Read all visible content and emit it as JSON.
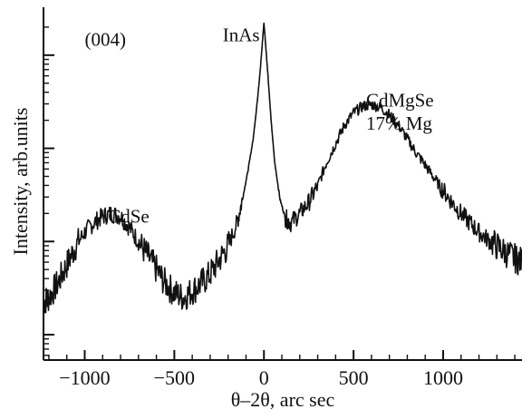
{
  "chart_data": {
    "type": "line",
    "xlabel": "θ–2θ, arc sec",
    "ylabel": "Intensity, arb.units",
    "xlim": [
      -1230,
      1440
    ],
    "y_scale": "log",
    "y_decades": [
      0,
      3.3
    ],
    "grid": false,
    "legend": "none",
    "x_ticks": [
      -1000,
      -500,
      0,
      500,
      1000
    ],
    "x_tick_labels": [
      "−1000",
      "−500",
      "0",
      "500",
      "1000"
    ],
    "annotations": [
      {
        "text": "(004)",
        "x": -1000,
        "y_decade": 3.1
      },
      {
        "text": "InAs",
        "x": -230,
        "y_decade": 3.15
      },
      {
        "text": "CdMgSe",
        "x": 570,
        "y_decade": 2.45
      },
      {
        "text": "17% Mg",
        "x": 570,
        "y_decade": 2.2
      },
      {
        "text": "CdSe",
        "x": -870,
        "y_decade": 1.2
      }
    ],
    "series": [
      {
        "x": [
          -1230,
          -1200,
          -1150,
          -1100,
          -1050,
          -1000,
          -950,
          -900,
          -850,
          -800,
          -750,
          -700,
          -650,
          -600,
          -550,
          -500,
          -450,
          -400,
          -350,
          -300,
          -250,
          -200,
          -150,
          -120,
          -90,
          -60,
          -40,
          -20,
          0,
          20,
          40,
          60,
          90,
          120,
          150,
          200,
          250,
          300,
          350,
          400,
          450,
          500,
          550,
          600,
          650,
          700,
          750,
          800,
          850,
          900,
          950,
          1000,
          1050,
          1100,
          1150,
          1200,
          1250,
          1300,
          1350,
          1400,
          1440
        ],
        "y_decade": [
          0.35,
          0.4,
          0.55,
          0.75,
          0.95,
          1.1,
          1.2,
          1.27,
          1.3,
          1.27,
          1.15,
          1.0,
          0.85,
          0.7,
          0.55,
          0.45,
          0.4,
          0.47,
          0.55,
          0.65,
          0.8,
          0.95,
          1.2,
          1.45,
          1.75,
          2.1,
          2.45,
          2.85,
          3.35,
          2.85,
          2.3,
          1.85,
          1.45,
          1.25,
          1.2,
          1.3,
          1.42,
          1.6,
          1.85,
          2.05,
          2.25,
          2.38,
          2.45,
          2.47,
          2.44,
          2.36,
          2.25,
          2.1,
          1.95,
          1.82,
          1.68,
          1.55,
          1.42,
          1.3,
          1.2,
          1.1,
          1.02,
          0.95,
          0.88,
          0.82,
          0.78
        ]
      }
    ]
  }
}
